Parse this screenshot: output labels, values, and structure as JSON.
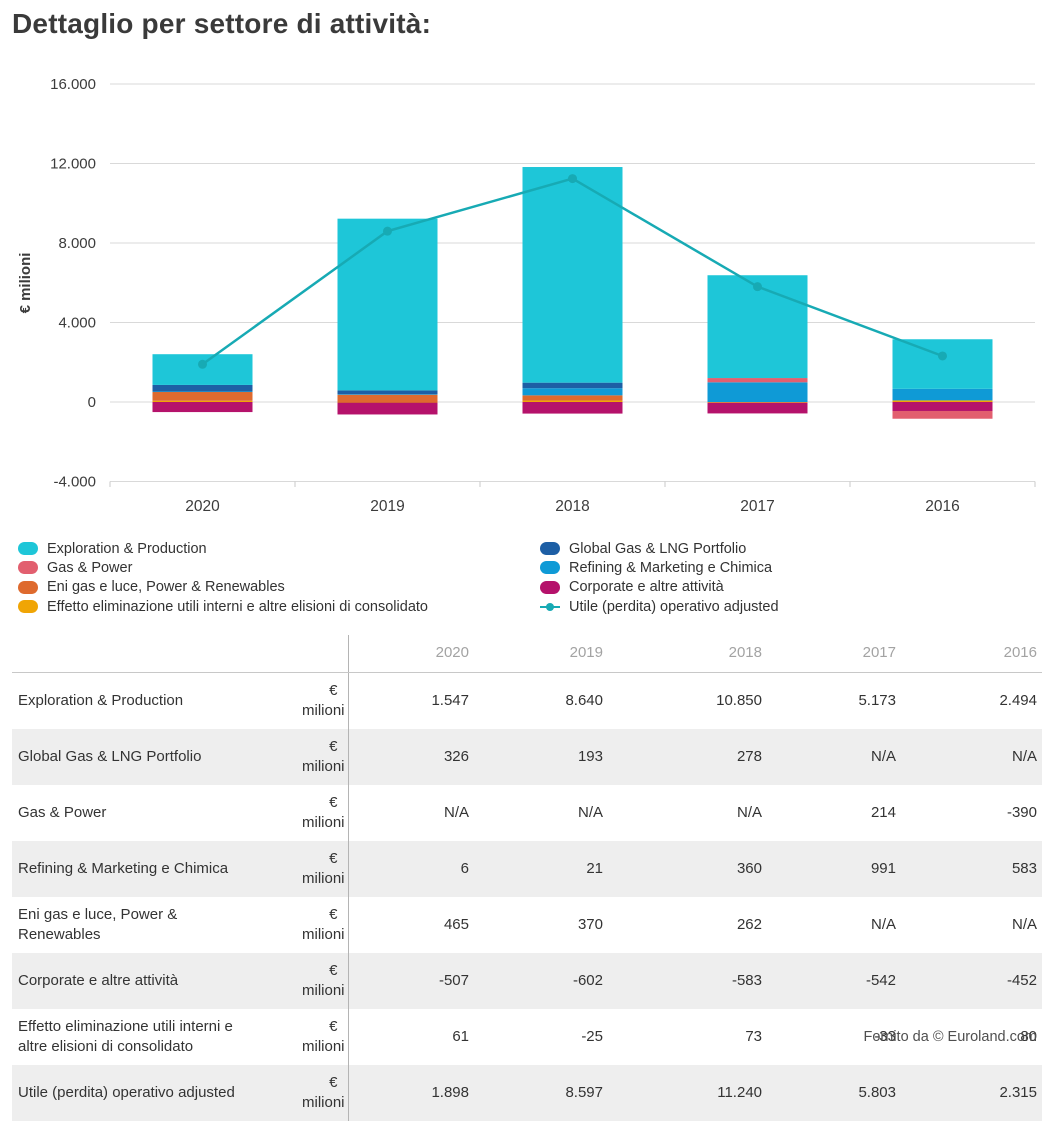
{
  "title": "Dettaglio per settore di attività:",
  "footer": {
    "text": "Fornito da © Euroland.com"
  },
  "colors": {
    "exploration_production": "#1ec6d8",
    "global_gas_lng": "#1d5fa5",
    "gas_power": "#e25f6f",
    "refining_marketing": "#0f9ad6",
    "eni_gas_luce": "#de6a2e",
    "corporate": "#b5126b",
    "effetto_eliminazione": "#f0a505",
    "utile_line": "#17aab4",
    "gridline": "#d9d9d9",
    "axis": "#c9c9c9"
  },
  "chart_data": {
    "type": "stacked-bar+line",
    "title": "Dettaglio per settore di attività",
    "categories": [
      "2020",
      "2019",
      "2018",
      "2017",
      "2016"
    ],
    "xlabel": "",
    "ylabel": "€ milioni",
    "ylim": [
      -4000,
      16000
    ],
    "grid": "horizontal",
    "legend_position": "bottom-two-columns",
    "yticks": [
      {
        "value": 16000,
        "label": "16.000"
      },
      {
        "value": 12000,
        "label": "12.000"
      },
      {
        "value": 8000,
        "label": "8.000"
      },
      {
        "value": 4000,
        "label": "4.000"
      },
      {
        "value": 0,
        "label": "0"
      },
      {
        "value": -4000,
        "label": "-4.000"
      }
    ],
    "series": [
      {
        "name": "Exploration & Production",
        "color": "#1ec6d8",
        "values": [
          1547,
          8640,
          10850,
          5173,
          2494
        ]
      },
      {
        "name": "Global Gas & LNG Portfolio",
        "color": "#1d5fa5",
        "values": [
          326,
          193,
          278,
          null,
          null
        ]
      },
      {
        "name": "Gas & Power",
        "color": "#e25f6f",
        "values": [
          null,
          null,
          null,
          214,
          -390
        ]
      },
      {
        "name": "Refining & Marketing e Chimica",
        "color": "#0f9ad6",
        "values": [
          6,
          21,
          360,
          991,
          583
        ]
      },
      {
        "name": "Eni gas e luce, Power & Renewables",
        "color": "#de6a2e",
        "values": [
          465,
          370,
          262,
          null,
          null
        ]
      },
      {
        "name": "Corporate e altre attività",
        "color": "#b5126b",
        "values": [
          -507,
          -602,
          -583,
          -542,
          -452
        ]
      },
      {
        "name": "Effetto eliminazione utili interni e altre elisioni di consolidato",
        "color": "#f0a505",
        "values": [
          61,
          -25,
          73,
          -33,
          80
        ]
      }
    ],
    "line_series": {
      "name": "Utile (perdita) operativo adjusted",
      "color": "#17aab4",
      "values": [
        1898,
        8597,
        11240,
        5803,
        2315
      ]
    },
    "legend_order": [
      0,
      2,
      4,
      6,
      1,
      3,
      5,
      -1
    ]
  },
  "table": {
    "unit_label": "€ milioni",
    "col_headers": [
      "2020",
      "2019",
      "2018",
      "2017",
      "2016"
    ],
    "rows": [
      {
        "label": "Exploration & Production",
        "values": [
          "1.547",
          "8.640",
          "10.850",
          "5.173",
          "2.494"
        ]
      },
      {
        "label": "Global Gas & LNG Portfolio",
        "values": [
          "326",
          "193",
          "278",
          "N/A",
          "N/A"
        ]
      },
      {
        "label": "Gas & Power",
        "values": [
          "N/A",
          "N/A",
          "N/A",
          "214",
          "-390"
        ]
      },
      {
        "label": "Refining & Marketing e Chimica",
        "values": [
          "6",
          "21",
          "360",
          "991",
          "583"
        ]
      },
      {
        "label": "Eni gas e luce, Power & Renewables",
        "values": [
          "465",
          "370",
          "262",
          "N/A",
          "N/A"
        ]
      },
      {
        "label": "Corporate e altre attività",
        "values": [
          "-507",
          "-602",
          "-583",
          "-542",
          "-452"
        ]
      },
      {
        "label": "Effetto eliminazione utili interni e altre elisioni di consolidato",
        "values": [
          "61",
          "-25",
          "73",
          "-33",
          "80"
        ]
      },
      {
        "label": "Utile (perdita) operativo adjusted",
        "values": [
          "1.898",
          "8.597",
          "11.240",
          "5.803",
          "2.315"
        ]
      }
    ]
  }
}
